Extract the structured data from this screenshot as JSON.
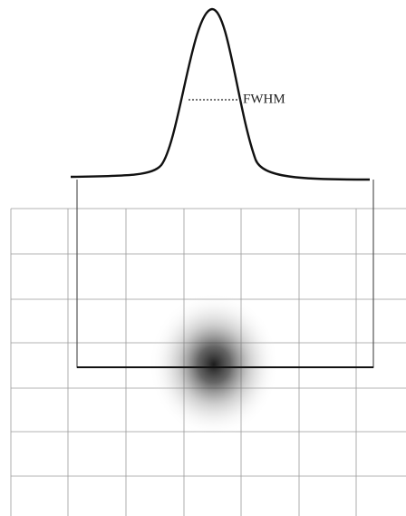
{
  "label": "FWHM"
}
